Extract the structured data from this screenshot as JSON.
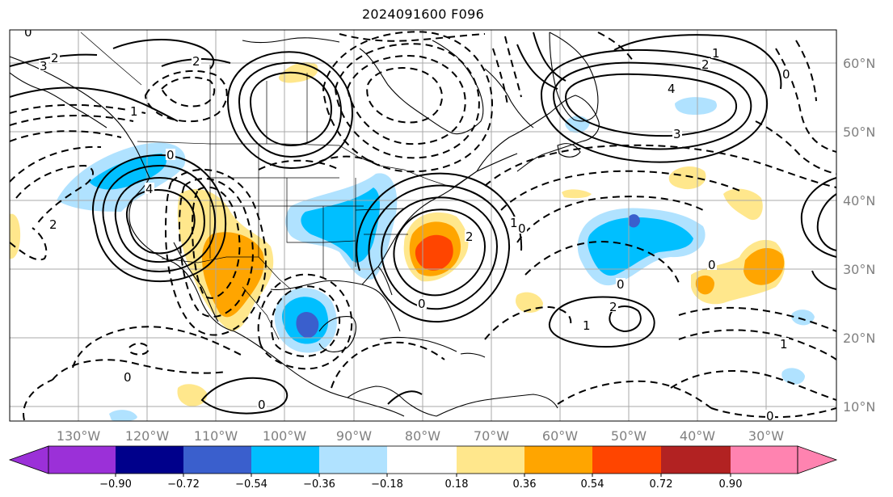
{
  "title": "2024091600 F096",
  "map": {
    "lat_labels": [
      "60°N",
      "50°N",
      "40°N",
      "30°N",
      "20°N",
      "10°N"
    ],
    "lon_labels": [
      "130°W",
      "120°W",
      "110°W",
      "100°W",
      "90°W",
      "80°W",
      "70°W",
      "60°W",
      "50°W",
      "40°W",
      "30°W"
    ],
    "contour_labels": [
      "0",
      "2",
      "3",
      "4",
      "1",
      "2",
      "0",
      "2",
      "2",
      "1",
      "0",
      "4",
      "3",
      "2",
      "1",
      "0",
      "0",
      "1",
      "2",
      "0",
      "1",
      "0",
      "0",
      "0",
      "0"
    ]
  },
  "colorbar": {
    "colors": [
      "#9b30d8",
      "#00008b",
      "#3a5fcd",
      "#00bfff",
      "#b0e2ff",
      "#ffffff",
      "#ffe78c",
      "#ffa500",
      "#ff4500",
      "#b22222",
      "#ff83b0"
    ],
    "tick_labels": [
      "−0.90",
      "−0.72",
      "−0.54",
      "−0.36",
      "−0.18",
      "0.18",
      "0.36",
      "0.54",
      "0.72",
      "0.90"
    ]
  }
}
